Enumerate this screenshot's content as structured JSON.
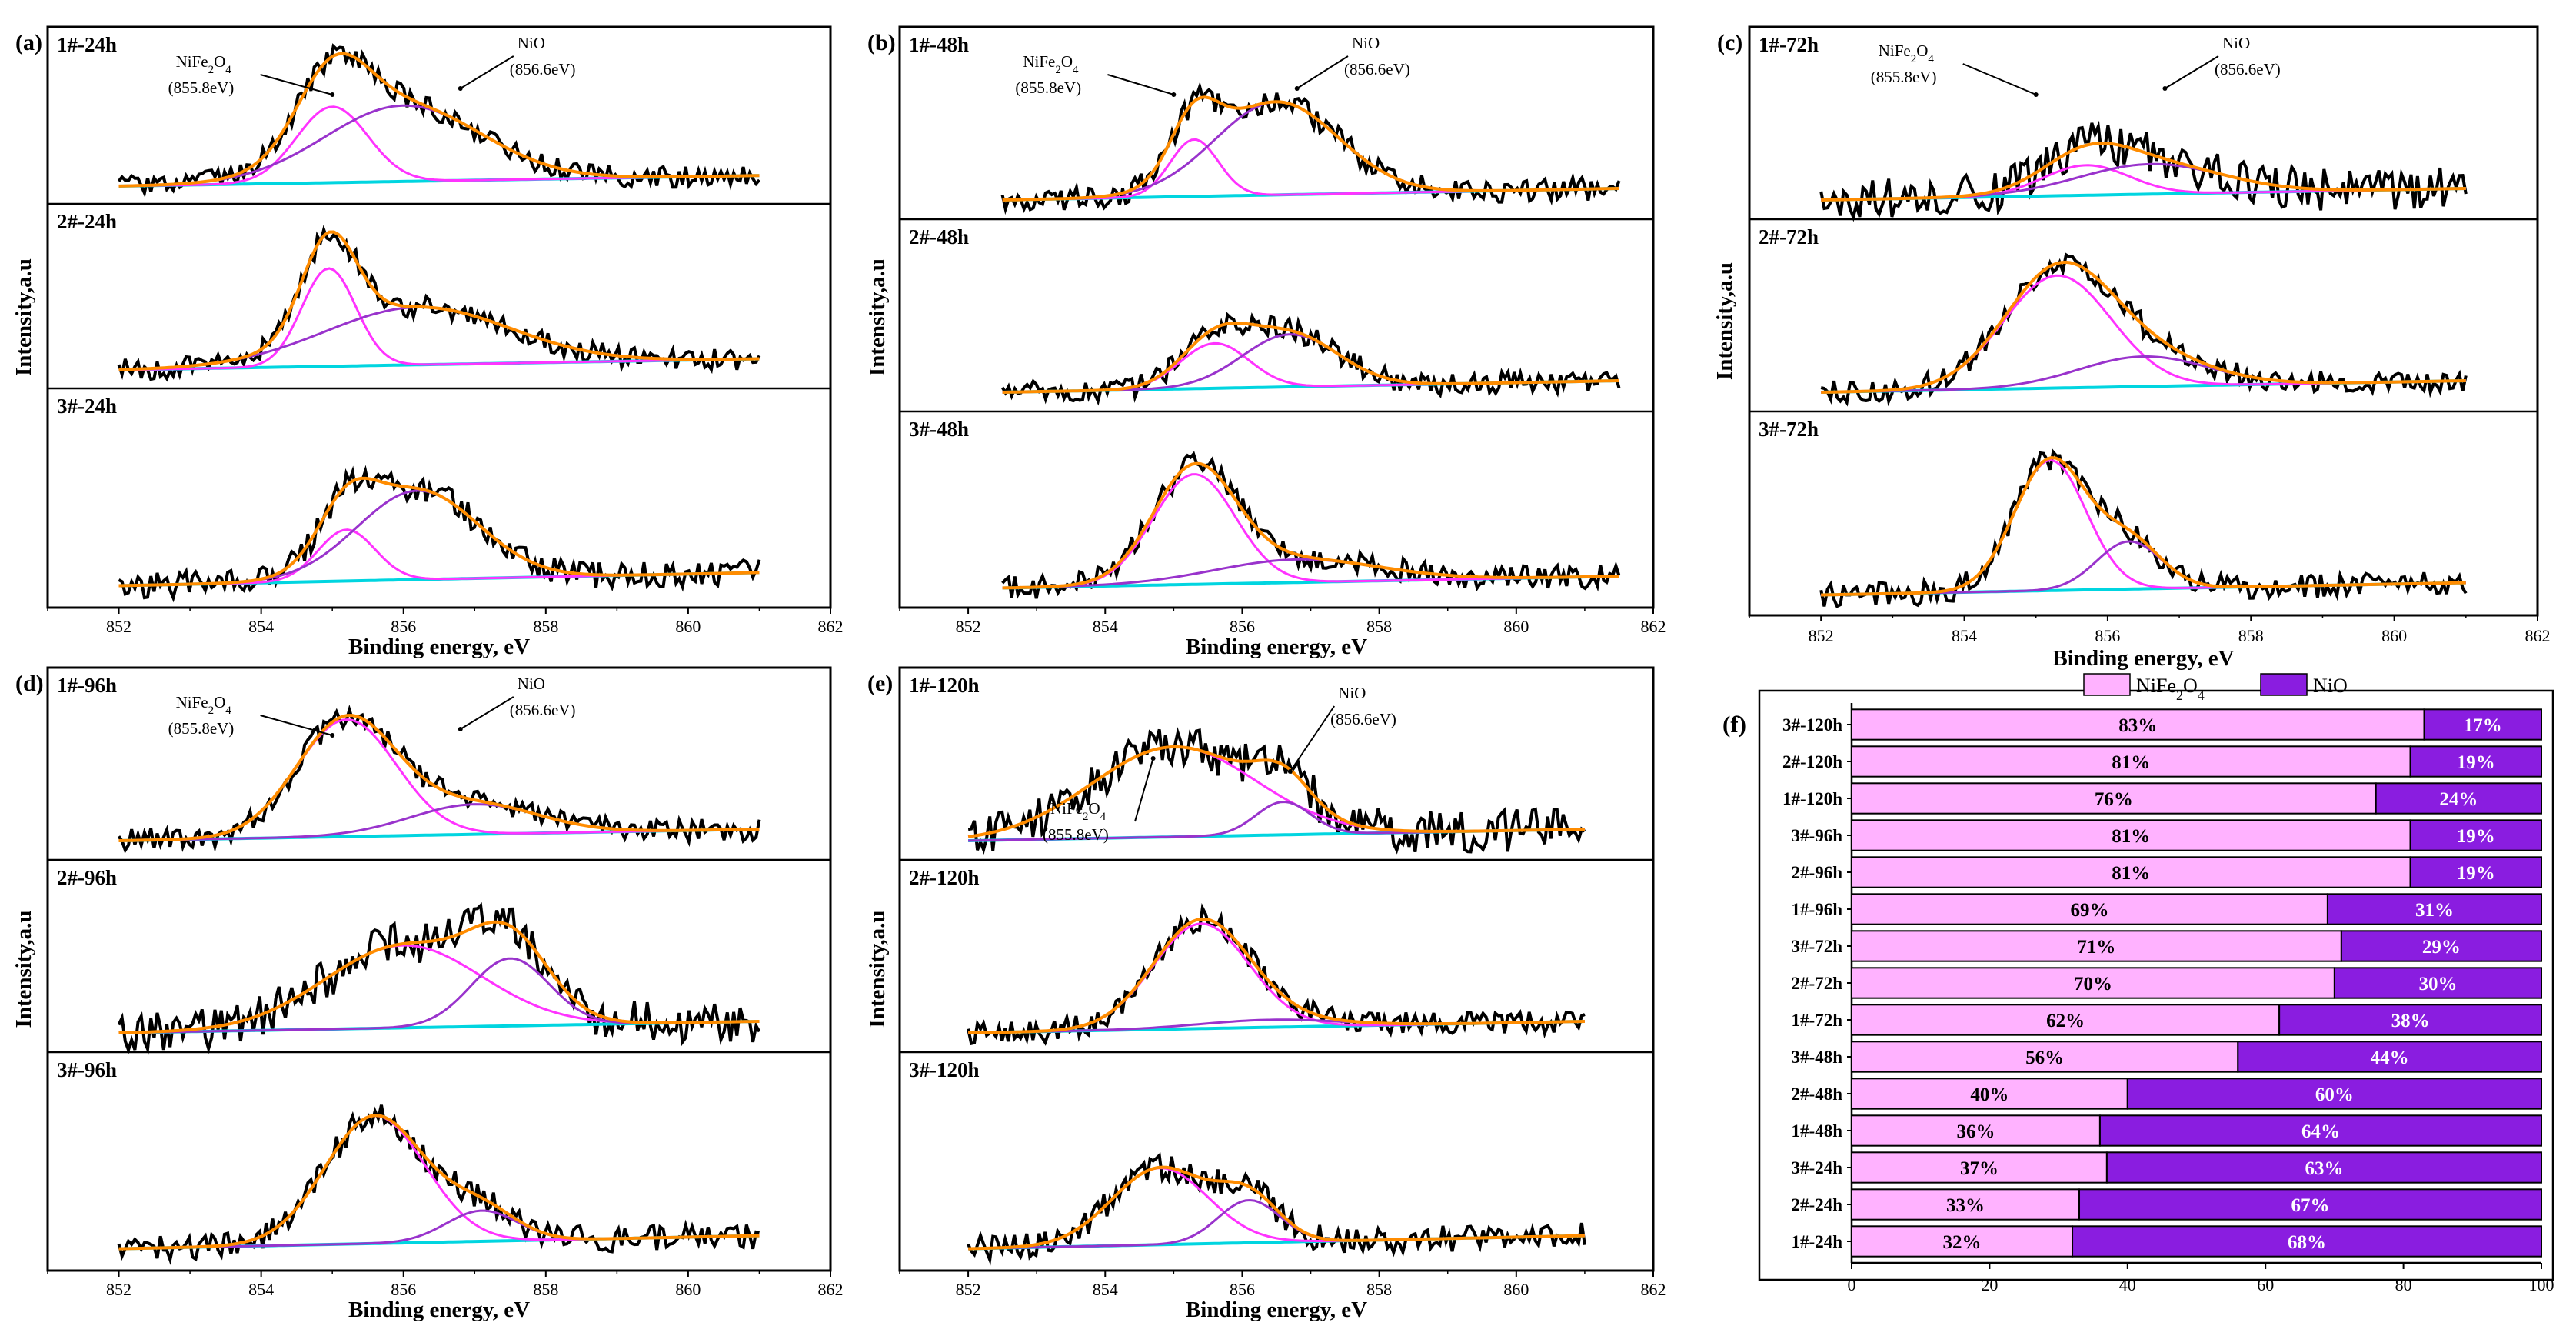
{
  "colors": {
    "data": "#000000",
    "envelope": "#ff8c00",
    "nife2o4_fit": "#ff33ff",
    "nio_fit": "#9933cc",
    "background": "#00d5e0",
    "bar_nife2o4": "#ffb2ff",
    "bar_nio": "#8a1de0"
  },
  "panels": [
    {
      "letter": "(a)",
      "xlabel": "Binding energy,  eV",
      "ylabel": "Intensity,a.u",
      "ticks": [
        "852",
        "854",
        "856",
        "858",
        "860",
        "862"
      ],
      "subplots": [
        {
          "label": "1#-24h",
          "annotations": [
            {
              "line1": "NiFe",
              "sub1": "2",
              "mid": "O",
              "sub2": "4",
              "line2": "(855.8eV)"
            },
            {
              "line1": "NiO",
              "line2": "(856.6eV)"
            }
          ]
        },
        {
          "label": "2#-24h"
        },
        {
          "label": "3#-24h"
        }
      ]
    },
    {
      "letter": "(b)",
      "xlabel": "Binding energy,  eV",
      "ylabel": "Intensity,a.u",
      "ticks": [
        "852",
        "854",
        "856",
        "858",
        "860",
        "862"
      ],
      "subplots": [
        {
          "label": "1#-48h",
          "annotations": [
            {
              "line1": "NiFe",
              "sub1": "2",
              "mid": "O",
              "sub2": "4",
              "line2": "(855.8eV)"
            },
            {
              "line1": "NiO",
              "line2": "(856.6eV)"
            }
          ]
        },
        {
          "label": "2#-48h"
        },
        {
          "label": "3#-48h"
        }
      ]
    },
    {
      "letter": "(c)",
      "xlabel": "Binding energy,  eV",
      "ylabel": "Intensity,a.u",
      "ticks": [
        "852",
        "854",
        "856",
        "858",
        "860",
        "862"
      ],
      "subplots": [
        {
          "label": "1#-72h",
          "annotations": [
            {
              "line1": "NiFe",
              "sub1": "2",
              "mid": "O",
              "sub2": "4",
              "line2": "(855.8eV)"
            },
            {
              "line1": "NiO",
              "line2": "(856.6eV)"
            }
          ]
        },
        {
          "label": "2#-72h"
        },
        {
          "label": "3#-72h"
        }
      ]
    },
    {
      "letter": "(d)",
      "xlabel": "Binding energy,  eV",
      "ylabel": "Intensity,a.u",
      "ticks": [
        "852",
        "854",
        "856",
        "858",
        "860",
        "862"
      ],
      "subplots": [
        {
          "label": "1#-96h",
          "annotations": [
            {
              "line1": "NiFe",
              "sub1": "2",
              "mid": "O",
              "sub2": "4",
              "line2": "(855.8eV)"
            },
            {
              "line1": "NiO",
              "line2": "(856.6eV)"
            }
          ]
        },
        {
          "label": "2#-96h"
        },
        {
          "label": "3#-96h"
        }
      ]
    },
    {
      "letter": "(e)",
      "xlabel": "Binding energy,  eV",
      "ylabel": "Intensity,a.u",
      "ticks": [
        "852",
        "854",
        "856",
        "858",
        "860",
        "862"
      ],
      "subplots": [
        {
          "label": "1#-120h",
          "annotations": [
            {
              "line1": "NiO",
              "line2": "(856.6eV)"
            },
            {
              "line1": "NiFe",
              "sub1": "2",
              "mid": "O",
              "sub2": "4",
              "line2": "(855.8eV)"
            }
          ]
        },
        {
          "label": "2#-120h"
        },
        {
          "label": "3#-120h"
        }
      ]
    }
  ],
  "chart_data": [
    {
      "type": "line",
      "panel": "(a)",
      "title": "",
      "xlabel": "Binding energy,  eV",
      "ylabel": "Intensity,a.u",
      "xlim": [
        851,
        862
      ],
      "subplots": [
        {
          "name": "1#-24h",
          "x_range": [
            852,
            861
          ],
          "peaks": {
            "NiFe2O4": {
              "center": 855.0,
              "height": 0.55,
              "width": 0.5
            },
            "NiO": {
              "center": 856.0,
              "height": 0.55,
              "width": 1.1
            }
          }
        },
        {
          "name": "2#-24h",
          "x_range": [
            852,
            861
          ],
          "peaks": {
            "NiFe2O4": {
              "center": 854.95,
              "height": 0.68,
              "width": 0.38
            },
            "NiO": {
              "center": 856.2,
              "height": 0.4,
              "width": 1.3
            }
          }
        },
        {
          "name": "3#-24h",
          "x_range": [
            852,
            861
          ],
          "peaks": {
            "NiFe2O4": {
              "center": 855.2,
              "height": 0.3,
              "width": 0.4
            },
            "NiO": {
              "center": 856.2,
              "height": 0.52,
              "width": 0.85
            }
          }
        }
      ]
    },
    {
      "type": "line",
      "panel": "(b)",
      "title": "",
      "xlabel": "Binding energy,  eV",
      "ylabel": "Intensity,a.u",
      "xlim": [
        851,
        862
      ],
      "subplots": [
        {
          "name": "1#-48h",
          "x_range": [
            852.5,
            861.5
          ],
          "peaks": {
            "NiFe2O4": {
              "center": 855.3,
              "height": 0.38,
              "width": 0.35
            },
            "NiO": {
              "center": 856.5,
              "height": 0.62,
              "width": 0.9
            }
          }
        },
        {
          "name": "2#-48h",
          "x_range": [
            852.5,
            861.5
          ],
          "peaks": {
            "NiFe2O4": {
              "center": 855.6,
              "height": 0.3,
              "width": 0.5
            },
            "NiO": {
              "center": 856.7,
              "height": 0.35,
              "width": 0.7
            }
          }
        },
        {
          "name": "3#-48h",
          "x_range": [
            852.5,
            861.5
          ],
          "peaks": {
            "NiFe2O4": {
              "center": 855.3,
              "height": 0.72,
              "width": 0.6
            },
            "NiO": {
              "center": 856.8,
              "height": 0.15,
              "width": 1.2
            }
          }
        }
      ]
    },
    {
      "type": "line",
      "panel": "(c)",
      "title": "",
      "xlabel": "Binding energy,  eV",
      "ylabel": "Intensity,a.u",
      "xlim": [
        851,
        862
      ],
      "subplots": [
        {
          "name": "1#-72h",
          "x_range": [
            852,
            861
          ],
          "peaks": {
            "NiFe2O4": {
              "center": 855.7,
              "height": 0.2,
              "width": 0.6
            },
            "NiO": {
              "center": 856.6,
              "height": 0.2,
              "width": 1.0
            }
          }
        },
        {
          "name": "2#-72h",
          "x_range": [
            852,
            861
          ],
          "peaks": {
            "NiFe2O4": {
              "center": 855.3,
              "height": 0.75,
              "width": 0.75
            },
            "NiO": {
              "center": 856.5,
              "height": 0.2,
              "width": 0.9
            }
          }
        },
        {
          "name": "3#-72h",
          "x_range": [
            852,
            861
          ],
          "peaks": {
            "NiFe2O4": {
              "center": 855.2,
              "height": 0.82,
              "width": 0.5
            },
            "NiO": {
              "center": 856.3,
              "height": 0.3,
              "width": 0.45
            }
          }
        }
      ]
    },
    {
      "type": "line",
      "panel": "(d)",
      "title": "",
      "xlabel": "Binding energy,  eV",
      "ylabel": "Intensity,a.u",
      "xlim": [
        851,
        862
      ],
      "subplots": [
        {
          "name": "1#-96h",
          "x_range": [
            852,
            861
          ],
          "peaks": {
            "NiFe2O4": {
              "center": 855.2,
              "height": 0.78,
              "width": 0.7
            },
            "NiO": {
              "center": 857.0,
              "height": 0.2,
              "width": 0.9
            }
          }
        },
        {
          "name": "2#-96h",
          "x_range": [
            852,
            861
          ],
          "peaks": {
            "NiFe2O4": {
              "center": 856.0,
              "height": 0.55,
              "width": 1.1
            },
            "NiO": {
              "center": 857.5,
              "height": 0.45,
              "width": 0.55
            }
          }
        },
        {
          "name": "3#-96h",
          "x_range": [
            852,
            861
          ],
          "peaks": {
            "NiFe2O4": {
              "center": 855.6,
              "height": 0.75,
              "width": 0.7
            },
            "NiO": {
              "center": 857.1,
              "height": 0.18,
              "width": 0.5
            }
          }
        }
      ]
    },
    {
      "type": "line",
      "panel": "(e)",
      "title": "",
      "xlabel": "Binding energy,  eV",
      "ylabel": "Intensity,a.u",
      "xlim": [
        851,
        862
      ],
      "subplots": [
        {
          "name": "1#-120h",
          "x_range": [
            852,
            861
          ],
          "peaks": {
            "NiFe2O4": {
              "center": 855.0,
              "height": 0.6,
              "width": 1.2
            },
            "NiO": {
              "center": 856.6,
              "height": 0.22,
              "width": 0.4
            }
          }
        },
        {
          "name": "2#-120h",
          "x_range": [
            852,
            861
          ],
          "peaks": {
            "NiFe2O4": {
              "center": 855.4,
              "height": 0.7,
              "width": 0.7
            },
            "NiO": {
              "center": 856.4,
              "height": 0.05,
              "width": 1.0
            }
          }
        },
        {
          "name": "3#-120h",
          "x_range": [
            852,
            861
          ],
          "peaks": {
            "NiFe2O4": {
              "center": 854.8,
              "height": 0.45,
              "width": 0.7
            },
            "NiO": {
              "center": 856.1,
              "height": 0.25,
              "width": 0.45
            }
          }
        }
      ]
    },
    {
      "type": "bar",
      "panel": "(f)",
      "orientation": "horizontal",
      "stacked": true,
      "categories": [
        "3#-120h",
        "2#-120h",
        "1#-120h",
        "3#-96h",
        "2#-96h",
        "1#-96h",
        "3#-72h",
        "2#-72h",
        "1#-72h",
        "3#-48h",
        "2#-48h",
        "1#-48h",
        "3#-24h",
        "2#-24h",
        "1#-24h"
      ],
      "series": [
        {
          "name": "NiFe2O4",
          "legend_main": "NiFe",
          "legend_sub1": "2",
          "legend_mid": "O",
          "legend_sub2": "4",
          "values": [
            83,
            81,
            76,
            81,
            81,
            69,
            71,
            70,
            62,
            56,
            40,
            36,
            37,
            33,
            32
          ],
          "labels": [
            "83%",
            "81%",
            "76%",
            "81%",
            "81%",
            "69%",
            "71%",
            "70%",
            "62%",
            "56%",
            "40%",
            "36%",
            "37%",
            "33%",
            "32%"
          ]
        },
        {
          "name": "NiO",
          "values": [
            17,
            19,
            24,
            19,
            19,
            31,
            29,
            30,
            38,
            44,
            60,
            64,
            63,
            67,
            68
          ],
          "labels": [
            "17%",
            "19%",
            "24%",
            "19%",
            "19%",
            "31%",
            "29%",
            "30%",
            "38%",
            "44%",
            "60%",
            "64%",
            "63%",
            "67%",
            "68%"
          ]
        }
      ],
      "xlim": [
        0,
        100
      ],
      "xticks": [
        "0",
        "20",
        "40",
        "60",
        "80",
        "100"
      ],
      "legend": "top"
    }
  ],
  "bar_panel": {
    "letter": "(f)"
  }
}
